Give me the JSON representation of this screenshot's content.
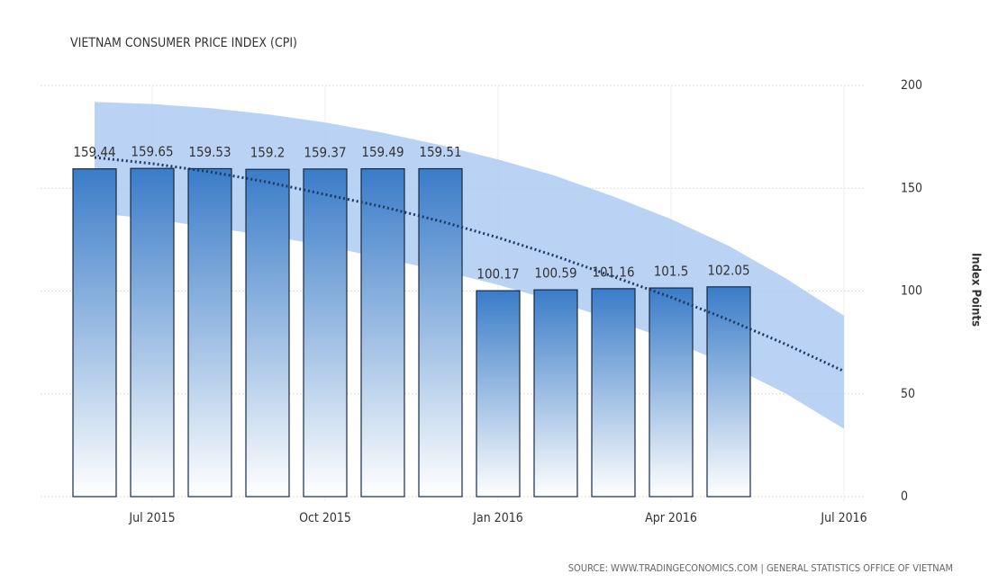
{
  "chart_data": {
    "type": "bar",
    "title": "VIETNAM CONSUMER PRICE INDEX (CPI)",
    "y_axis_label": "Index Points",
    "source": "SOURCE: WWW.TRADINGECONOMICS.COM | GENERAL STATISTICS OFFICE OF VIETNAM",
    "categories": [
      null,
      "Jul 2015",
      null,
      null,
      "Oct 2015",
      null,
      null,
      "Jan 2016",
      null,
      null,
      "Apr 2016",
      null,
      null,
      "Jul 2016"
    ],
    "values": [
      159.44,
      159.65,
      159.53,
      159.2,
      159.37,
      159.49,
      159.51,
      100.17,
      100.59,
      101.16,
      101.5,
      102.05,
      null,
      null
    ],
    "trend": [
      165,
      162,
      158,
      153,
      147,
      141,
      134,
      126,
      117,
      107,
      97,
      86,
      74,
      61
    ],
    "band_upper": [
      192,
      191,
      189,
      186,
      182,
      177,
      171,
      164,
      156,
      146,
      135,
      122,
      106,
      88
    ],
    "band_lower": [
      138,
      135,
      131,
      127,
      122,
      116,
      110,
      103,
      95,
      86,
      76,
      64,
      50,
      33
    ],
    "color": "#3a7cc8",
    "trend_color": "#1b3a66",
    "band_color": "#a9c8f2",
    "ylim": [
      0,
      200
    ],
    "yticks": [
      0,
      50,
      100,
      150,
      200
    ],
    "grid": true
  }
}
